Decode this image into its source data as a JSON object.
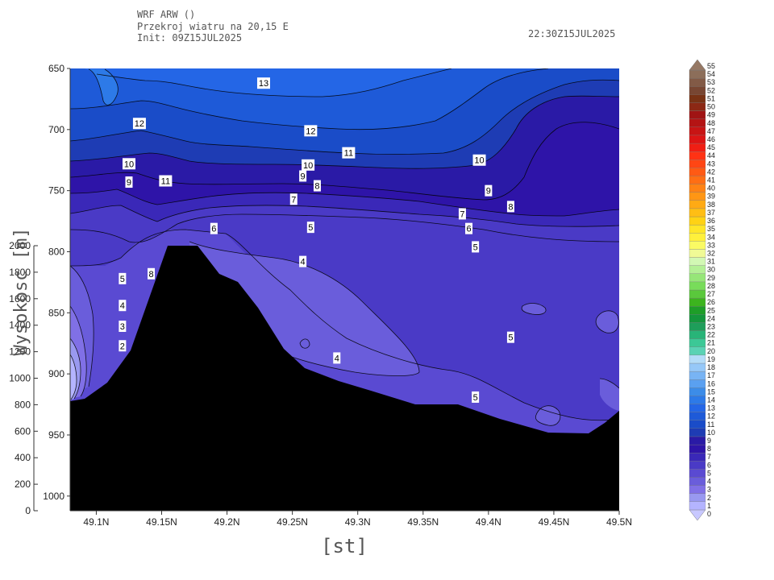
{
  "header": {
    "line1": "WRF ARW ()",
    "line2": "Przekroj wiatru na 20,15 E",
    "line3": "Init: 09Z15JUL2025",
    "valid_time": "22:30Z15JUL2025"
  },
  "chart_data": {
    "type": "heatmap",
    "subtitle": "Przekroj wiatru na 20,15 E",
    "xlabel": "[st]",
    "y2label": "Wysokosc [m]",
    "x_ticks": [
      "49.1N",
      "49.15N",
      "49.2N",
      "49.25N",
      "49.3N",
      "49.35N",
      "49.4N",
      "49.45N",
      "49.5N"
    ],
    "x_range": [
      49.08,
      49.5
    ],
    "y_ticks": [
      650,
      700,
      750,
      800,
      850,
      900,
      950,
      1000
    ],
    "y_range": [
      650,
      1012
    ],
    "y2_ticks": [
      0,
      200,
      400,
      600,
      800,
      1000,
      1200,
      1400,
      1600,
      1800,
      2000
    ],
    "y2_range": [
      0,
      2000
    ],
    "colorbar_levels": [
      0,
      1,
      2,
      3,
      4,
      5,
      6,
      7,
      8,
      9,
      10,
      11,
      12,
      13,
      14,
      15,
      16,
      17,
      18,
      19,
      20,
      21,
      22,
      23,
      24,
      25,
      26,
      27,
      28,
      29,
      30,
      31,
      32,
      33,
      34,
      35,
      36,
      37,
      38,
      39,
      40,
      41,
      42,
      43,
      44,
      45,
      46,
      47,
      48,
      49,
      50,
      51,
      52,
      53,
      54,
      55
    ],
    "colorbar_colors": [
      "#c8c8ff",
      "#b4b4ff",
      "#9999f0",
      "#8070e6",
      "#6a5ddb",
      "#5a4ad2",
      "#4a3ac6",
      "#3a28b8",
      "#2e14a8",
      "#2a1aa6",
      "#1e3cb4",
      "#1a4cc8",
      "#1e5ad8",
      "#2466e6",
      "#2d7ae8",
      "#3c8ce8",
      "#5aa0f0",
      "#78b4f4",
      "#96c8f8",
      "#b4dcf8",
      "#5ad2b4",
      "#3cc896",
      "#28b478",
      "#1e9e5a",
      "#14963c",
      "#1e9e28",
      "#3cb41e",
      "#5ac83c",
      "#78dc5a",
      "#96e678",
      "#b4f096",
      "#d2f8b4",
      "#f0fa96",
      "#fafa64",
      "#fff03c",
      "#ffe628",
      "#ffd214",
      "#ffbe14",
      "#ffaa14",
      "#ff9614",
      "#ff8214",
      "#ff6e14",
      "#ff5a14",
      "#ff4614",
      "#ff3214",
      "#f01e14",
      "#dc1414",
      "#c81414",
      "#b41414",
      "#a01414",
      "#8c2814",
      "#783214",
      "#784632",
      "#825a46",
      "#8c6e5a",
      "#967864"
    ],
    "contour_labels": [
      {
        "v": "13",
        "x": 49.228,
        "p": 662
      },
      {
        "v": "12",
        "x": 49.133,
        "p": 695
      },
      {
        "v": "12",
        "x": 49.264,
        "p": 701
      },
      {
        "v": "11",
        "x": 49.293,
        "p": 719
      },
      {
        "v": "11",
        "x": 49.153,
        "p": 742
      },
      {
        "v": "10",
        "x": 49.125,
        "p": 728
      },
      {
        "v": "10",
        "x": 49.262,
        "p": 729
      },
      {
        "v": "10",
        "x": 49.393,
        "p": 725
      },
      {
        "v": "9",
        "x": 49.125,
        "p": 743
      },
      {
        "v": "9",
        "x": 49.258,
        "p": 738
      },
      {
        "v": "9",
        "x": 49.4,
        "p": 750
      },
      {
        "v": "8",
        "x": 49.269,
        "p": 746
      },
      {
        "v": "8",
        "x": 49.417,
        "p": 763
      },
      {
        "v": "8",
        "x": 49.142,
        "p": 818
      },
      {
        "v": "7",
        "x": 49.251,
        "p": 757
      },
      {
        "v": "7",
        "x": 49.38,
        "p": 769
      },
      {
        "v": "6",
        "x": 49.19,
        "p": 781
      },
      {
        "v": "6",
        "x": 49.385,
        "p": 781
      },
      {
        "v": "5",
        "x": 49.264,
        "p": 780
      },
      {
        "v": "5",
        "x": 49.39,
        "p": 796
      },
      {
        "v": "5",
        "x": 49.12,
        "p": 822
      },
      {
        "v": "5",
        "x": 49.417,
        "p": 870
      },
      {
        "v": "5",
        "x": 49.39,
        "p": 919
      },
      {
        "v": "4",
        "x": 49.258,
        "p": 808
      },
      {
        "v": "4",
        "x": 49.12,
        "p": 844
      },
      {
        "v": "4",
        "x": 49.284,
        "p": 887
      },
      {
        "v": "3",
        "x": 49.12,
        "p": 861
      },
      {
        "v": "2",
        "x": 49.12,
        "p": 877
      }
    ]
  }
}
